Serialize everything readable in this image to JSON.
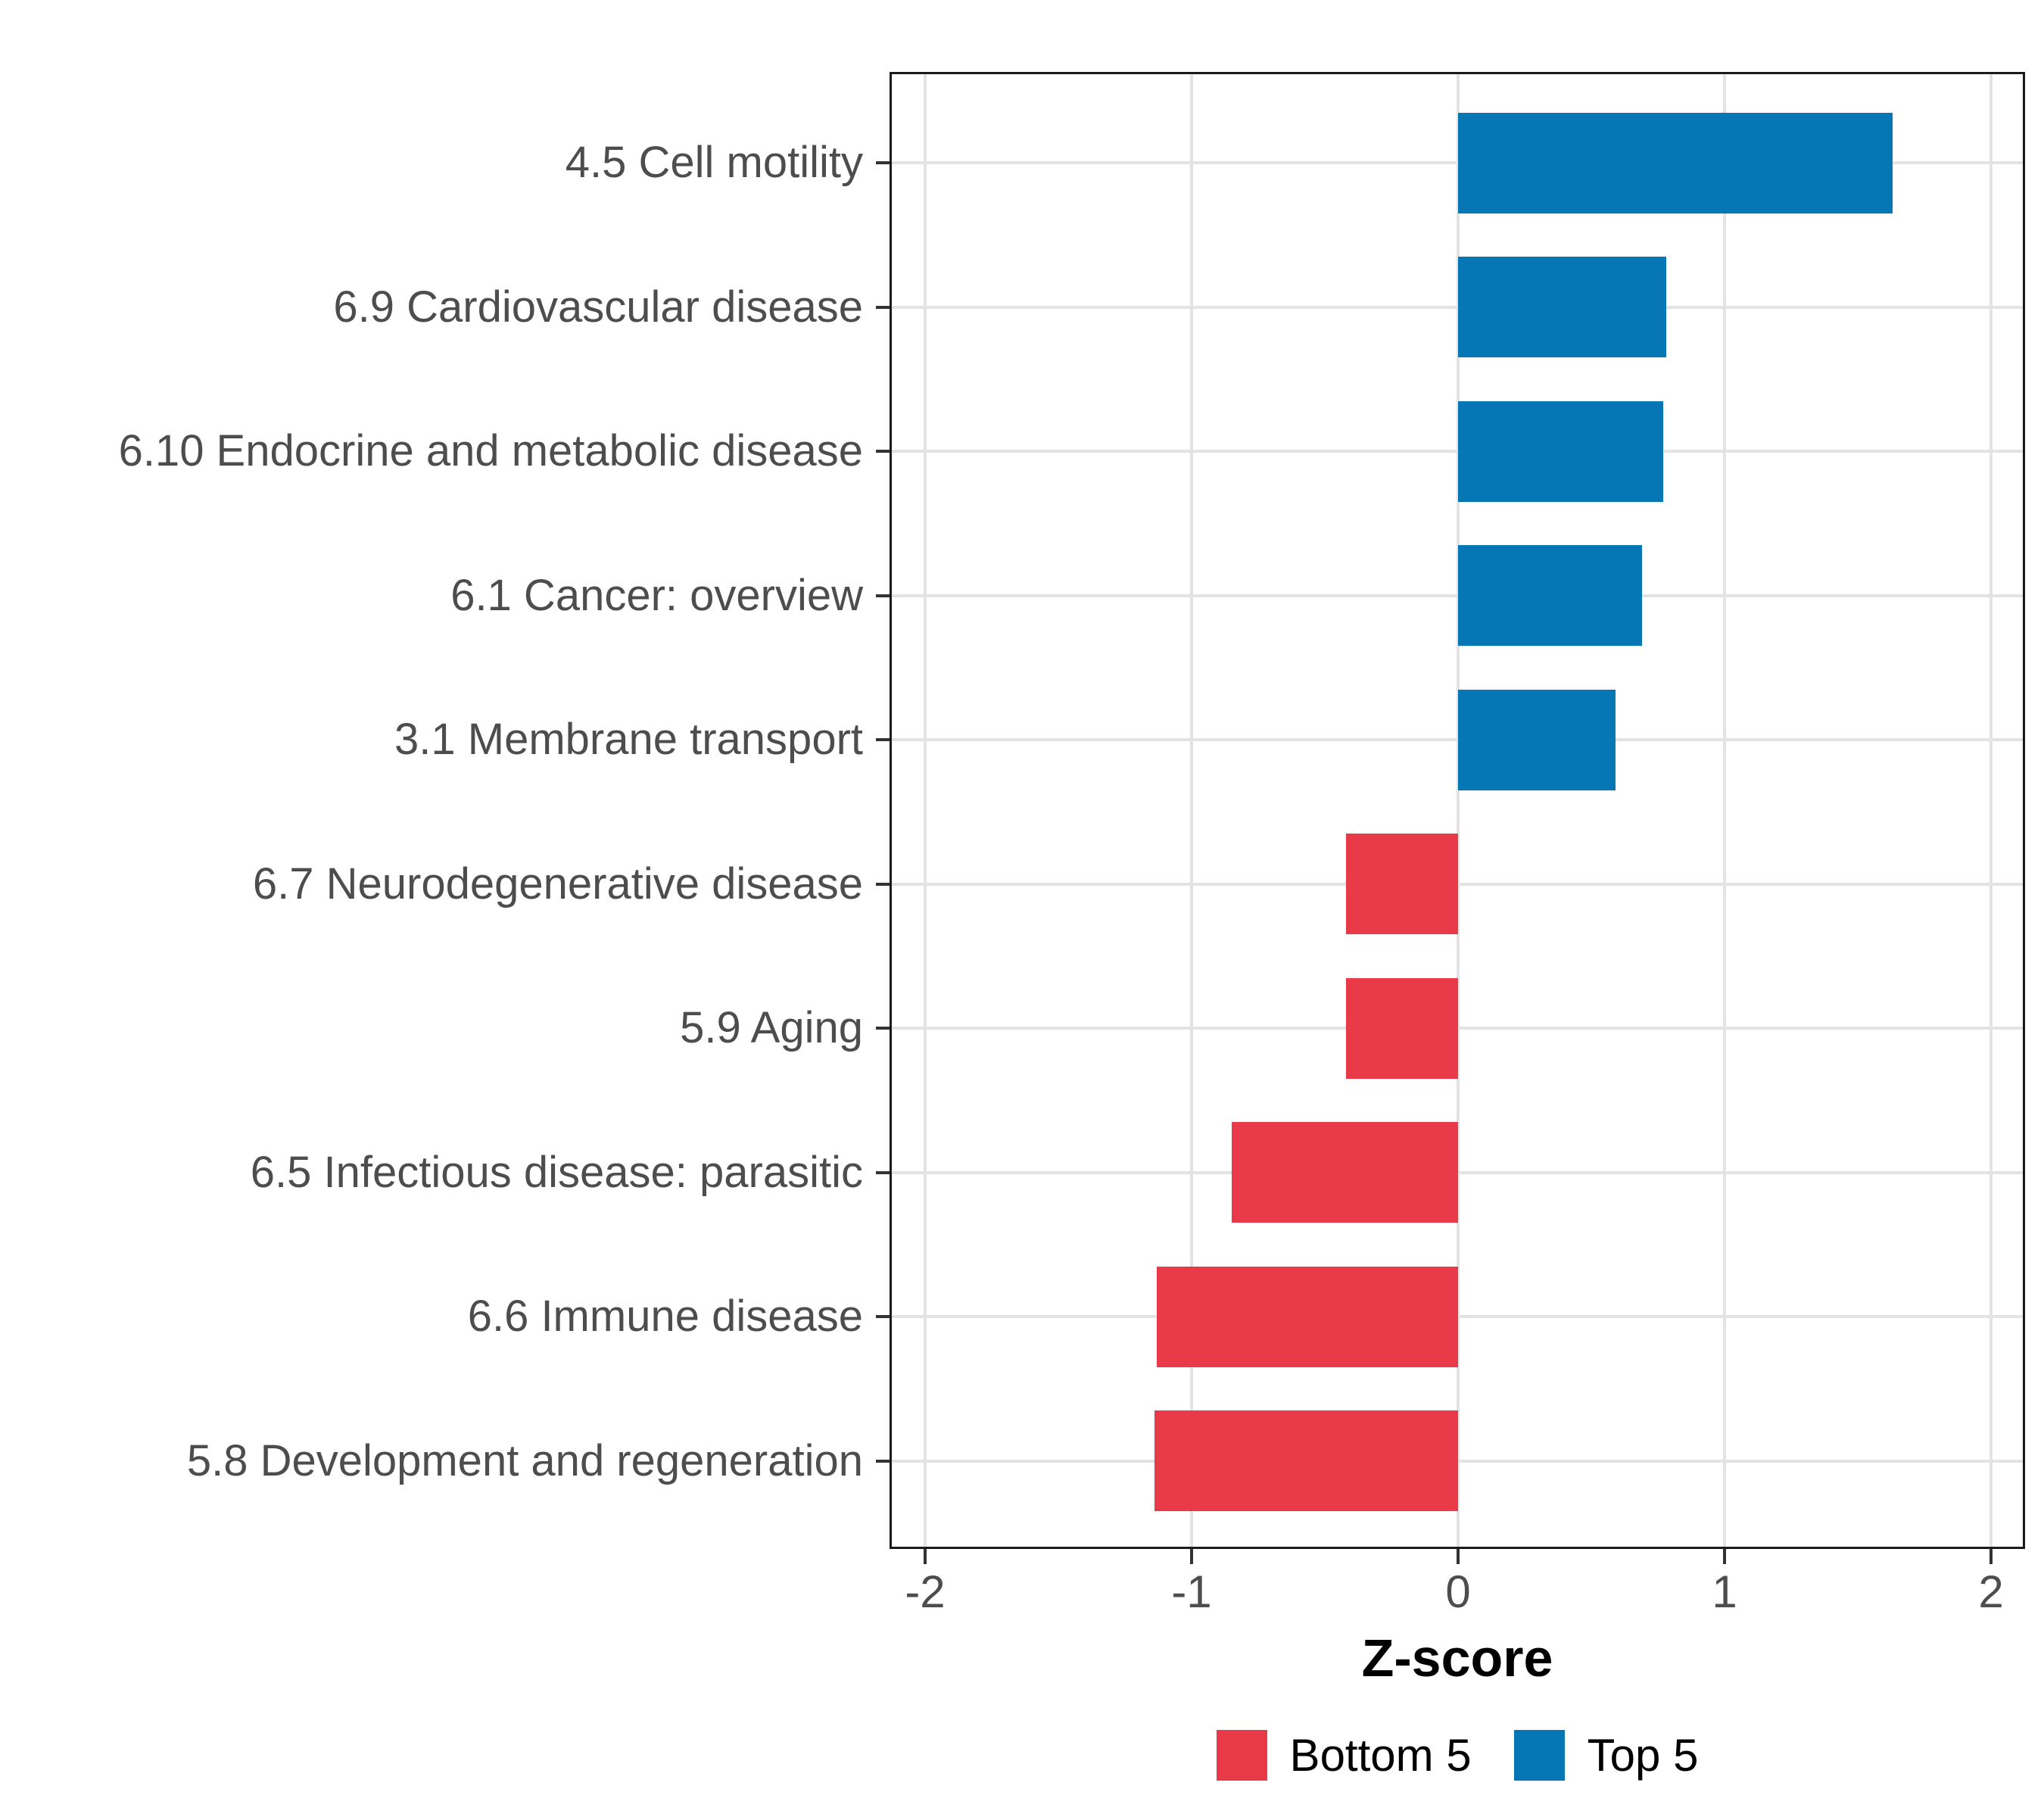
{
  "chart_data": {
    "type": "bar",
    "orientation": "horizontal",
    "title": "",
    "xlabel": "Z-score",
    "ylabel": "",
    "xlim": [
      -2.13,
      2.13
    ],
    "x_ticks": [
      -2,
      -1,
      0,
      1,
      2
    ],
    "grid": "major vertical gridlines and one horizontal gridline per category",
    "legend_position": "bottom-center",
    "categories": [
      "4.5 Cell motility",
      "6.9 Cardiovascular disease",
      "6.10 Endocrine and metabolic disease",
      "6.1 Cancer: overview",
      "3.1 Membrane transport",
      "6.7 Neurodegenerative disease",
      "5.9 Aging",
      "6.5 Infectious disease: parasitic",
      "6.6 Immune disease",
      "5.8 Development and regeneration"
    ],
    "values": [
      1.63,
      0.78,
      0.77,
      0.69,
      0.59,
      -0.42,
      -0.42,
      -0.85,
      -1.13,
      -1.14
    ],
    "groups": [
      "Top 5",
      "Top 5",
      "Top 5",
      "Top 5",
      "Top 5",
      "Bottom 5",
      "Bottom 5",
      "Bottom 5",
      "Bottom 5",
      "Bottom 5"
    ],
    "group_colors": {
      "Top 5": "#0776B4",
      "Bottom 5": "#E83A48"
    },
    "legend": [
      {
        "label": "Bottom 5",
        "color": "#E83A48"
      },
      {
        "label": "Top 5",
        "color": "#0776B4"
      }
    ],
    "style_colors": {
      "gridline": "#e3e3e3",
      "panel_border": "#1a1a1a",
      "axis_text": "#4d4d4d",
      "tick_mark": "#333333",
      "axis_title": "#000000"
    }
  }
}
